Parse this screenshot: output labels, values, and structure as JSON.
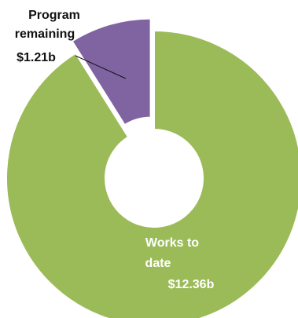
{
  "chart_data": {
    "type": "pie",
    "variant": "donut",
    "exploded": true,
    "legend": "none",
    "categories": [
      "Works to date",
      "Program remaining"
    ],
    "values": [
      12.36,
      1.21
    ],
    "colors": [
      "#9bbb59",
      "#8064a2"
    ],
    "data_labels": {
      "works": {
        "line1": "Works to",
        "line2": "date",
        "value": "$12.36b"
      },
      "program": {
        "line1": "Program",
        "line2": "remaining",
        "value": "$1.21b"
      }
    }
  }
}
